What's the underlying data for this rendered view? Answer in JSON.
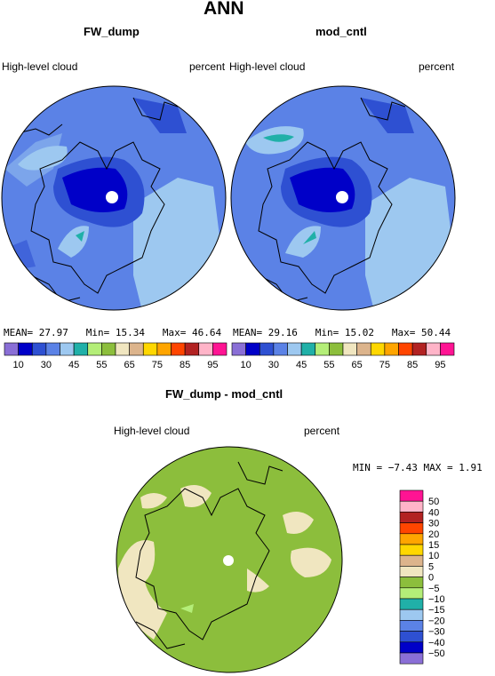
{
  "title": "ANN",
  "panels": [
    {
      "case": "FW_dump",
      "variable": "High-level cloud",
      "units": "percent",
      "stats": {
        "mean_label": "MEAN=",
        "mean": "27.97",
        "min_label": "Min=",
        "min": "15.34",
        "max_label": "Max=",
        "max": "46.64"
      }
    },
    {
      "case": "mod_cntl",
      "variable": "High-level cloud",
      "units": "percent",
      "stats": {
        "mean_label": "MEAN=",
        "mean": "29.16",
        "min_label": "Min=",
        "min": "15.02",
        "max_label": "Max=",
        "max": "50.44"
      }
    }
  ],
  "colorbar": {
    "colors": [
      "#8a6fd6",
      "#0000c8",
      "#2e50d2",
      "#5b82e6",
      "#9dc8f0",
      "#20b0a8",
      "#b4ee78",
      "#8cbe3c",
      "#f0e6c0",
      "#dcb48c",
      "#ffd700",
      "#ffa500",
      "#ff4500",
      "#b22222",
      "#ffb4c8",
      "#ff1493"
    ],
    "ticks": [
      "10",
      "30",
      "45",
      "55",
      "65",
      "75",
      "85",
      "95"
    ]
  },
  "diff": {
    "case": "FW_dump - mod_cntl",
    "variable": "High-level cloud",
    "units": "percent",
    "stats": {
      "min_label": "MIN =",
      "min": "−7.43",
      "max_label": "MAX =",
      "max": "1.91"
    },
    "colorbar": {
      "colors": [
        "#ff1493",
        "#ffb4c8",
        "#b22222",
        "#ff4500",
        "#ffa500",
        "#ffd700",
        "#dcb48c",
        "#f0e6c0",
        "#8cbe3c",
        "#b4ee78",
        "#20b0a8",
        "#9dc8f0",
        "#5b82e6",
        "#2e50d2",
        "#0000c8",
        "#8a6fd6"
      ],
      "ticks": [
        "50",
        "40",
        "30",
        "20",
        "15",
        "10",
        "5",
        "0",
        "−5",
        "−10",
        "−15",
        "−20",
        "−30",
        "−40",
        "−50"
      ]
    }
  }
}
